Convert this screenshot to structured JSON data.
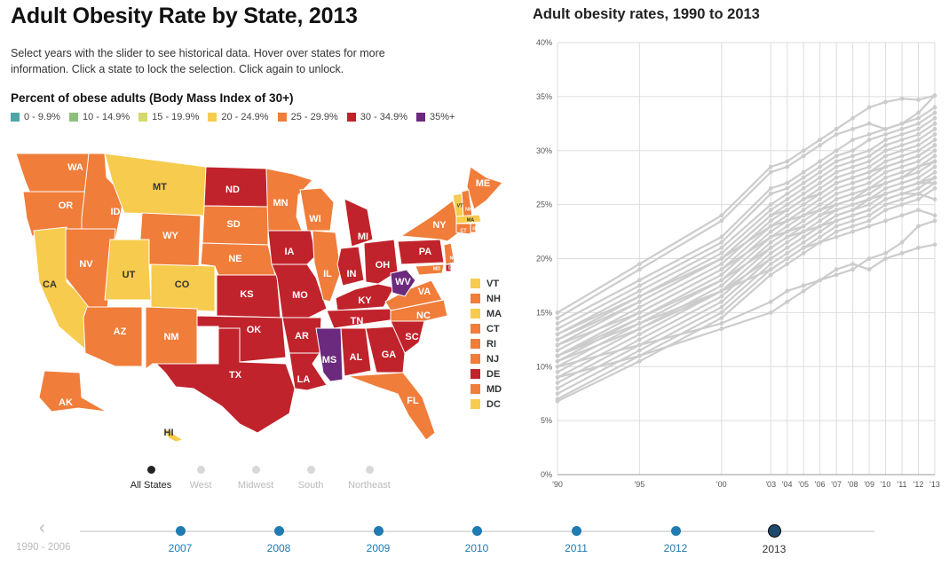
{
  "page": {
    "title": "Adult Obesity Rate by State, 2013",
    "intro": "Select years with the slider to see historical data. Hover over states for more information. Click a state to lock the selection. Click again to unlock."
  },
  "legend": {
    "title": "Percent of obese adults (Body Mass Index of 30+)",
    "items": [
      {
        "label": "0 - 9.9%",
        "color": "#4fa6a8"
      },
      {
        "label": "10 - 14.9%",
        "color": "#8cc07a"
      },
      {
        "label": "15 - 19.9%",
        "color": "#d2d96e"
      },
      {
        "label": "20 - 24.9%",
        "color": "#f7cb4d"
      },
      {
        "label": "25 - 29.9%",
        "color": "#f07d3a"
      },
      {
        "label": "30 - 34.9%",
        "color": "#c0232b"
      },
      {
        "label": "35%+",
        "color": "#6b2a7e"
      }
    ]
  },
  "map": {
    "state_labels": [
      {
        "abbr": "WA",
        "bin": 4
      },
      {
        "abbr": "OR",
        "bin": 4
      },
      {
        "abbr": "CA",
        "bin": 3
      },
      {
        "abbr": "ID",
        "bin": 4
      },
      {
        "abbr": "NV",
        "bin": 4
      },
      {
        "abbr": "MT",
        "bin": 3
      },
      {
        "abbr": "WY",
        "bin": 4
      },
      {
        "abbr": "UT",
        "bin": 3
      },
      {
        "abbr": "CO",
        "bin": 3
      },
      {
        "abbr": "AZ",
        "bin": 4
      },
      {
        "abbr": "NM",
        "bin": 4
      },
      {
        "abbr": "ND",
        "bin": 5
      },
      {
        "abbr": "SD",
        "bin": 4
      },
      {
        "abbr": "NE",
        "bin": 4
      },
      {
        "abbr": "KS",
        "bin": 5
      },
      {
        "abbr": "OK",
        "bin": 5
      },
      {
        "abbr": "TX",
        "bin": 5
      },
      {
        "abbr": "MN",
        "bin": 4
      },
      {
        "abbr": "IA",
        "bin": 5
      },
      {
        "abbr": "MO",
        "bin": 5
      },
      {
        "abbr": "AR",
        "bin": 5
      },
      {
        "abbr": "LA",
        "bin": 5
      },
      {
        "abbr": "WI",
        "bin": 4
      },
      {
        "abbr": "IL",
        "bin": 4
      },
      {
        "abbr": "MI",
        "bin": 5
      },
      {
        "abbr": "IN",
        "bin": 5
      },
      {
        "abbr": "OH",
        "bin": 5
      },
      {
        "abbr": "KY",
        "bin": 5
      },
      {
        "abbr": "TN",
        "bin": 5
      },
      {
        "abbr": "MS",
        "bin": 6
      },
      {
        "abbr": "AL",
        "bin": 5
      },
      {
        "abbr": "GA",
        "bin": 5
      },
      {
        "abbr": "FL",
        "bin": 4
      },
      {
        "abbr": "SC",
        "bin": 5
      },
      {
        "abbr": "NC",
        "bin": 4
      },
      {
        "abbr": "VA",
        "bin": 4
      },
      {
        "abbr": "WV",
        "bin": 6
      },
      {
        "abbr": "PA",
        "bin": 5
      },
      {
        "abbr": "NY",
        "bin": 4
      },
      {
        "abbr": "ME",
        "bin": 4
      },
      {
        "abbr": "AK",
        "bin": 4
      },
      {
        "abbr": "HI",
        "bin": 3
      },
      {
        "abbr": "VT",
        "bin": 3
      },
      {
        "abbr": "NH",
        "bin": 4
      },
      {
        "abbr": "MA",
        "bin": 3
      },
      {
        "abbr": "CT",
        "bin": 4
      },
      {
        "abbr": "RI",
        "bin": 4
      },
      {
        "abbr": "NJ",
        "bin": 4
      },
      {
        "abbr": "DE",
        "bin": 5
      },
      {
        "abbr": "MD",
        "bin": 4
      }
    ],
    "northeast_list": [
      {
        "abbr": "VT",
        "color": "#f7cb4d"
      },
      {
        "abbr": "NH",
        "color": "#f07d3a"
      },
      {
        "abbr": "MA",
        "color": "#f7cb4d"
      },
      {
        "abbr": "CT",
        "color": "#f07d3a"
      },
      {
        "abbr": "RI",
        "color": "#f07d3a"
      },
      {
        "abbr": "NJ",
        "color": "#f07d3a"
      },
      {
        "abbr": "DE",
        "color": "#c0232b"
      },
      {
        "abbr": "MD",
        "color": "#f07d3a"
      },
      {
        "abbr": "DC",
        "color": "#f7cb4d"
      }
    ]
  },
  "regions": {
    "items": [
      "All States",
      "West",
      "Midwest",
      "South",
      "Northeast"
    ],
    "selected": "All States"
  },
  "chart_data": {
    "type": "line",
    "title": "Adult obesity rates, 1990 to 2013",
    "xlabel": "",
    "ylabel": "",
    "x": [
      1990,
      1995,
      2000,
      2003,
      2004,
      2005,
      2006,
      2007,
      2008,
      2009,
      2010,
      2011,
      2012,
      2013
    ],
    "x_tick_labels": [
      "'90",
      "'95",
      "'00",
      "'03",
      "'04",
      "'05",
      "'06",
      "'07",
      "'08",
      "'09",
      "'10",
      "'11",
      "'12",
      "'13"
    ],
    "ylim": [
      0,
      40
    ],
    "y_ticks": [
      0,
      5,
      10,
      15,
      20,
      25,
      30,
      35,
      40
    ],
    "y_tick_labels": [
      "0%",
      "5%",
      "10%",
      "15%",
      "20%",
      "25%",
      "30%",
      "35%",
      "40%"
    ],
    "grid": true,
    "line_color": "#cccccc",
    "series": [
      {
        "values": [
          15.0,
          19.5,
          24.0,
          28.5,
          29.0,
          30.0,
          31.0,
          32.0,
          33.0,
          34.0,
          34.5,
          34.8,
          34.7,
          35.1
        ]
      },
      {
        "values": [
          14.5,
          19.0,
          23.5,
          28.0,
          28.5,
          29.5,
          30.5,
          31.5,
          32.0,
          32.5,
          32.0,
          32.5,
          33.5,
          35.1
        ]
      },
      {
        "values": [
          14.0,
          18.0,
          22.0,
          26.5,
          27.0,
          28.0,
          29.0,
          30.0,
          31.0,
          31.5,
          32.0,
          32.5,
          33.0,
          34.0
        ]
      },
      {
        "values": [
          13.5,
          17.5,
          21.5,
          26.0,
          26.5,
          27.5,
          28.5,
          29.5,
          30.0,
          31.0,
          31.5,
          32.0,
          32.5,
          33.5
        ]
      },
      {
        "values": [
          13.0,
          17.0,
          21.0,
          25.0,
          26.0,
          27.0,
          28.0,
          29.0,
          29.5,
          30.0,
          31.0,
          31.5,
          32.0,
          33.0
        ]
      },
      {
        "values": [
          12.5,
          16.5,
          20.5,
          24.5,
          25.5,
          26.5,
          27.5,
          28.5,
          29.0,
          29.5,
          30.5,
          31.0,
          31.5,
          32.5
        ]
      },
      {
        "values": [
          12.0,
          16.0,
          20.0,
          24.0,
          25.0,
          26.0,
          27.0,
          28.0,
          28.5,
          29.0,
          30.0,
          30.5,
          31.0,
          32.0
        ]
      },
      {
        "values": [
          11.5,
          15.5,
          19.5,
          23.5,
          24.5,
          25.5,
          26.5,
          27.5,
          28.0,
          28.5,
          29.5,
          30.0,
          30.5,
          31.5
        ]
      },
      {
        "values": [
          11.0,
          15.0,
          19.0,
          23.0,
          24.0,
          25.0,
          26.0,
          27.0,
          27.5,
          28.0,
          29.0,
          29.5,
          30.0,
          31.0
        ]
      },
      {
        "values": [
          10.5,
          14.5,
          18.5,
          22.5,
          23.5,
          24.5,
          25.5,
          26.5,
          27.0,
          27.5,
          28.5,
          29.0,
          29.5,
          30.5
        ]
      },
      {
        "values": [
          10.0,
          14.0,
          18.0,
          22.0,
          23.0,
          24.0,
          25.0,
          26.0,
          26.5,
          27.0,
          28.0,
          28.5,
          29.0,
          30.0
        ]
      },
      {
        "values": [
          9.5,
          13.5,
          17.5,
          21.5,
          22.5,
          23.5,
          24.5,
          25.5,
          26.0,
          26.5,
          27.5,
          28.0,
          28.5,
          29.5
        ]
      },
      {
        "values": [
          9.0,
          13.0,
          17.0,
          21.0,
          22.0,
          23.0,
          24.0,
          25.0,
          25.5,
          26.0,
          27.0,
          27.5,
          28.0,
          29.0
        ]
      },
      {
        "values": [
          8.5,
          12.5,
          16.5,
          20.5,
          21.5,
          22.5,
          23.5,
          24.5,
          25.0,
          25.5,
          26.5,
          27.0,
          27.5,
          28.5
        ]
      },
      {
        "values": [
          8.0,
          12.0,
          16.0,
          20.0,
          21.0,
          22.0,
          23.0,
          24.0,
          24.5,
          25.0,
          26.0,
          26.5,
          27.0,
          28.0
        ]
      },
      {
        "values": [
          7.5,
          11.5,
          15.5,
          19.5,
          20.5,
          21.5,
          22.5,
          23.5,
          24.0,
          24.5,
          25.5,
          26.0,
          26.5,
          27.5
        ]
      },
      {
        "values": [
          7.0,
          11.0,
          15.0,
          19.0,
          20.0,
          21.0,
          22.0,
          23.0,
          23.5,
          24.0,
          25.0,
          25.5,
          26.0,
          27.0
        ]
      },
      {
        "values": [
          6.8,
          10.5,
          14.5,
          18.5,
          19.5,
          20.5,
          21.5,
          22.5,
          23.0,
          23.5,
          24.5,
          25.0,
          25.5,
          26.5
        ]
      },
      {
        "values": [
          10.0,
          12.0,
          14.0,
          16.0,
          17.0,
          17.5,
          18.0,
          19.0,
          19.5,
          19.0,
          20.0,
          20.5,
          21.0,
          21.3
        ]
      },
      {
        "values": [
          9.0,
          11.0,
          13.5,
          15.0,
          16.0,
          17.0,
          18.0,
          18.5,
          19.0,
          20.0,
          20.5,
          21.5,
          23.0,
          23.5
        ]
      },
      {
        "values": [
          11.0,
          14.5,
          18.0,
          21.0,
          22.0,
          22.5,
          23.0,
          24.0,
          24.5,
          25.5,
          26.0,
          26.5,
          27.0,
          27.5
        ]
      },
      {
        "values": [
          12.0,
          15.0,
          19.0,
          22.0,
          22.5,
          23.0,
          24.0,
          24.5,
          25.0,
          25.5,
          26.0,
          26.5,
          27.0,
          27.0
        ]
      },
      {
        "values": [
          13.0,
          16.5,
          20.0,
          23.0,
          23.5,
          24.0,
          24.5,
          25.0,
          25.5,
          26.5,
          27.0,
          27.5,
          28.5,
          29.0
        ]
      },
      {
        "values": [
          11.0,
          14.0,
          17.0,
          20.0,
          21.0,
          22.0,
          23.0,
          23.5,
          24.0,
          24.5,
          25.5,
          26.0,
          26.0,
          25.5
        ]
      },
      {
        "values": [
          12.5,
          16.0,
          20.0,
          24.0,
          24.5,
          25.5,
          26.0,
          27.0,
          27.5,
          28.0,
          28.5,
          29.0,
          29.5,
          30.5
        ]
      },
      {
        "values": [
          10.5,
          13.5,
          17.0,
          19.0,
          20.0,
          21.0,
          21.5,
          22.0,
          22.5,
          23.0,
          23.5,
          24.0,
          24.5,
          24.0
        ]
      }
    ]
  },
  "timeline": {
    "prev_icon": "chevron-left-icon",
    "first_label": "1990 - 2006",
    "stops": [
      "2007",
      "2008",
      "2009",
      "2010",
      "2011",
      "2012",
      "2013"
    ],
    "selected": "2013"
  }
}
